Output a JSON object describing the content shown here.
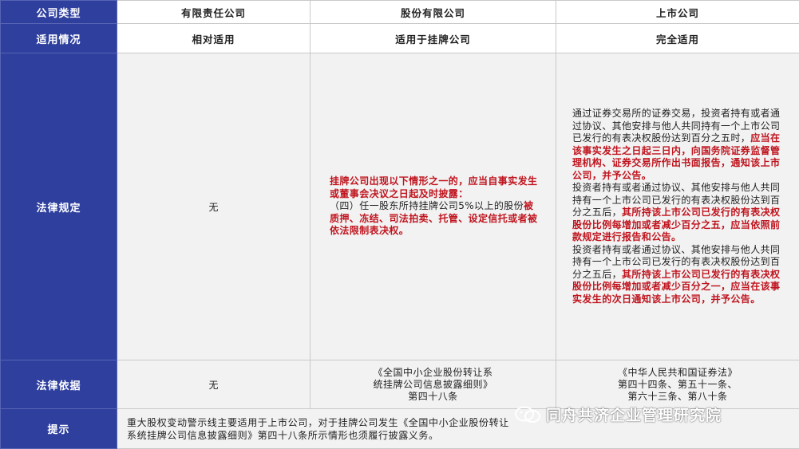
{
  "table": {
    "header_row": {
      "label": "公司类型",
      "col1": "有限责任公司",
      "col2": "股份有限公司",
      "col3": "上市公司"
    },
    "applicability": {
      "label": "适用情况",
      "col1": "相对适用",
      "col2": "适用于挂牌公司",
      "col3": "完全适用"
    },
    "legal_provisions": {
      "label": "法律规定",
      "col1": "无",
      "col2": {
        "part1": "挂牌公司出现以下情形之一的，应当自事实发生或董事会决议之日起及时披露：",
        "part2": "\n（四）任一股东所持挂牌公司5%以上的股份",
        "part3": "被质押、冻结、司法拍卖、托管、设定信托或者被依法限制表决权。"
      },
      "col3": {
        "p1_normal": "通过证券交易所的证券交易，投资者持有或者通过协议、其他安排与他人共同持有一个上市公司已发行的有表决权股份达到百分之五时，",
        "p1_red": "应当在该事实发生之日起三日内，向国务院证券监督管理机构、证券交易所作出书面报告，通知该上市公司，并予公告。",
        "p2_normal": "\n投资者持有或者通过协议、其他安排与他人共同持有一个上市公司已发行的有表决权股份达到百分之五后，",
        "p2_red": "其所持该上市公司已发行的有表决权股份比例每增加或者减少百分之五，应当依照前款规定进行报告和公告。",
        "p3_normal": "\n投资者持有或者通过协议、其他安排与他人共同持有一个上市公司已发行的有表决权股份达到百分之五后，",
        "p3_red": "其所持该上市公司已发行的有表决权股份比例每增加或者减少百分之一，应当在该事实发生的次日通知该上市公司，并予公告。"
      }
    },
    "legal_basis": {
      "label": "法律依据",
      "col1": "无",
      "col2": "《全国中小企业股份转让系\n统挂牌公司信息披露细则》\n第四十八条",
      "col3": "《中华人民共和国证券法》\n第四十四条、第五十一条、\n第六十三条、第八十条"
    },
    "tip": {
      "label": "提示",
      "text": "重大股权变动警示线主要适用于上市公司，对于挂牌公司发生《全国中小企业股份转让\n系统挂牌公司信息披露细则》第四十八条所示情形也须履行披露义务。"
    }
  },
  "watermark": {
    "text": "同舟共济企业管理研究院",
    "icon": "wechat-icon"
  },
  "colors": {
    "header_blue": "#2e3f9e",
    "red_text": "#c0141e",
    "cell_gray": "#f2f2f2"
  }
}
